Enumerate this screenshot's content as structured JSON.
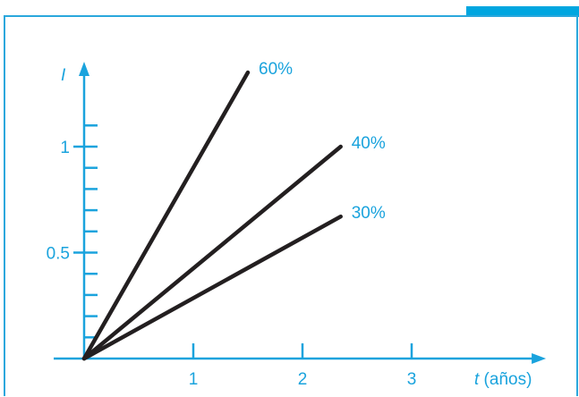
{
  "chart_data": {
    "type": "line",
    "xlabel_var": "t",
    "xlabel_unit": "(años)",
    "ylabel": "I",
    "xlim": [
      0,
      4.05
    ],
    "ylim": [
      0,
      1.35
    ],
    "x_ticks": [
      1,
      2,
      3
    ],
    "x_tick_labels": [
      "1",
      "2",
      "3"
    ],
    "y_ticks": [
      0.1,
      0.2,
      0.3,
      0.4,
      0.5,
      0.6,
      0.7,
      0.8,
      0.9,
      1.0,
      1.1
    ],
    "y_tick_labels": [
      {
        "value": 0.5,
        "label": "0.5"
      },
      {
        "value": 1,
        "label": "1"
      }
    ],
    "series": [
      {
        "name": "60%",
        "x": [
          0,
          1.5
        ],
        "y": [
          0,
          1.35
        ]
      },
      {
        "name": "40%",
        "x": [
          0,
          2.35
        ],
        "y": [
          0,
          1.0
        ]
      },
      {
        "name": "30%",
        "x": [
          0,
          2.35
        ],
        "y": [
          0,
          0.67
        ]
      }
    ],
    "line_color": "#231f20",
    "axis_color": "#1aa3dd"
  }
}
